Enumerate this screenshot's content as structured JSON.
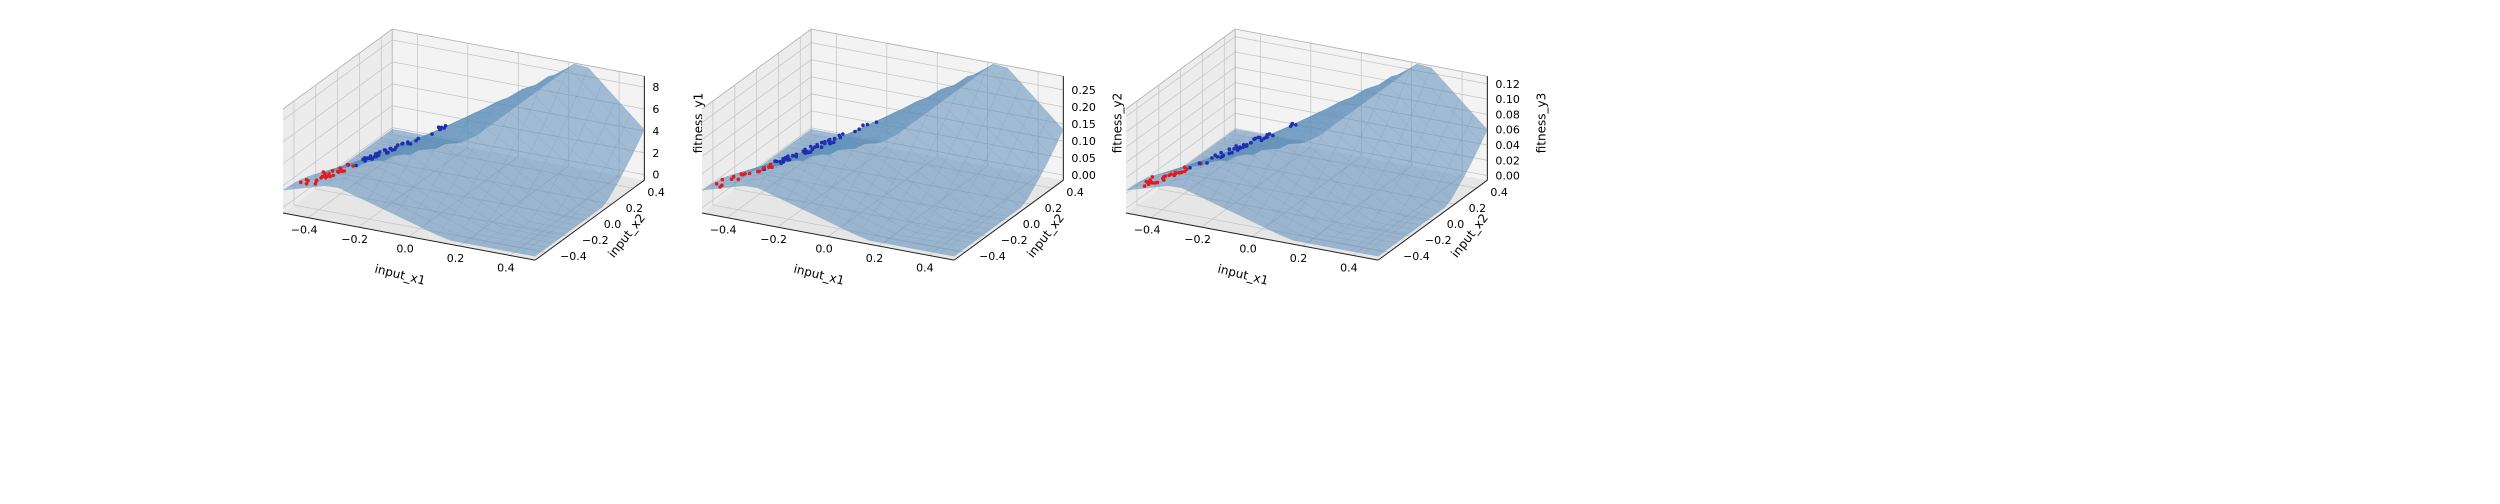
{
  "figure": {
    "background": "#ffffff",
    "pane_colors": [
      "#ececec",
      "#f3f3f3",
      "#e6e6e6"
    ],
    "grid_color": "#c8c8c8",
    "surface_color": "#5b8db8",
    "surface_edge_color": "#3a6f9a",
    "point_colors": {
      "red": "#e41a1c",
      "blue": "#1f2fb0"
    }
  },
  "chart_data": [
    {
      "type": "scatter3d-surface",
      "xlabel": "input_x1",
      "ylabel": "input_x2",
      "zlabel": "fitness_y1",
      "xticks": [
        "−0.4",
        "−0.2",
        "0.0",
        "0.2",
        "0.4"
      ],
      "yticks": [
        "−0.4",
        "−0.2",
        "0.0",
        "0.2",
        "0.4"
      ],
      "zticks": [
        "0",
        "2",
        "4",
        "6",
        "8"
      ],
      "xlim": [
        -0.5,
        0.5
      ],
      "ylim": [
        -0.5,
        0.5
      ],
      "zlim": [
        -0.5,
        9
      ]
    },
    {
      "type": "scatter3d-surface",
      "xlabel": "input_x1",
      "ylabel": "input_x2",
      "zlabel": "fitness_y2",
      "xticks": [
        "−0.4",
        "−0.2",
        "0.0",
        "0.2",
        "0.4"
      ],
      "yticks": [
        "−0.4",
        "−0.2",
        "0.0",
        "0.2",
        "0.4"
      ],
      "zticks": [
        "0.00",
        "0.05",
        "0.10",
        "0.15",
        "0.20",
        "0.25"
      ],
      "xlim": [
        -0.5,
        0.5
      ],
      "ylim": [
        -0.5,
        0.5
      ],
      "zlim": [
        -0.015,
        0.29
      ]
    },
    {
      "type": "scatter3d-surface",
      "xlabel": "input_x1",
      "ylabel": "input_x2",
      "zlabel": "fitness_y3",
      "xticks": [
        "−0.4",
        "−0.2",
        "0.0",
        "0.2",
        "0.4"
      ],
      "yticks": [
        "−0.4",
        "−0.2",
        "0.0",
        "0.2",
        "0.4"
      ],
      "zticks": [
        "0.00",
        "0.02",
        "0.04",
        "0.06",
        "0.08",
        "0.10",
        "0.12"
      ],
      "xlim": [
        -0.5,
        0.5
      ],
      "ylim": [
        -0.5,
        0.5
      ],
      "zlim": [
        -0.006,
        0.13
      ]
    }
  ]
}
